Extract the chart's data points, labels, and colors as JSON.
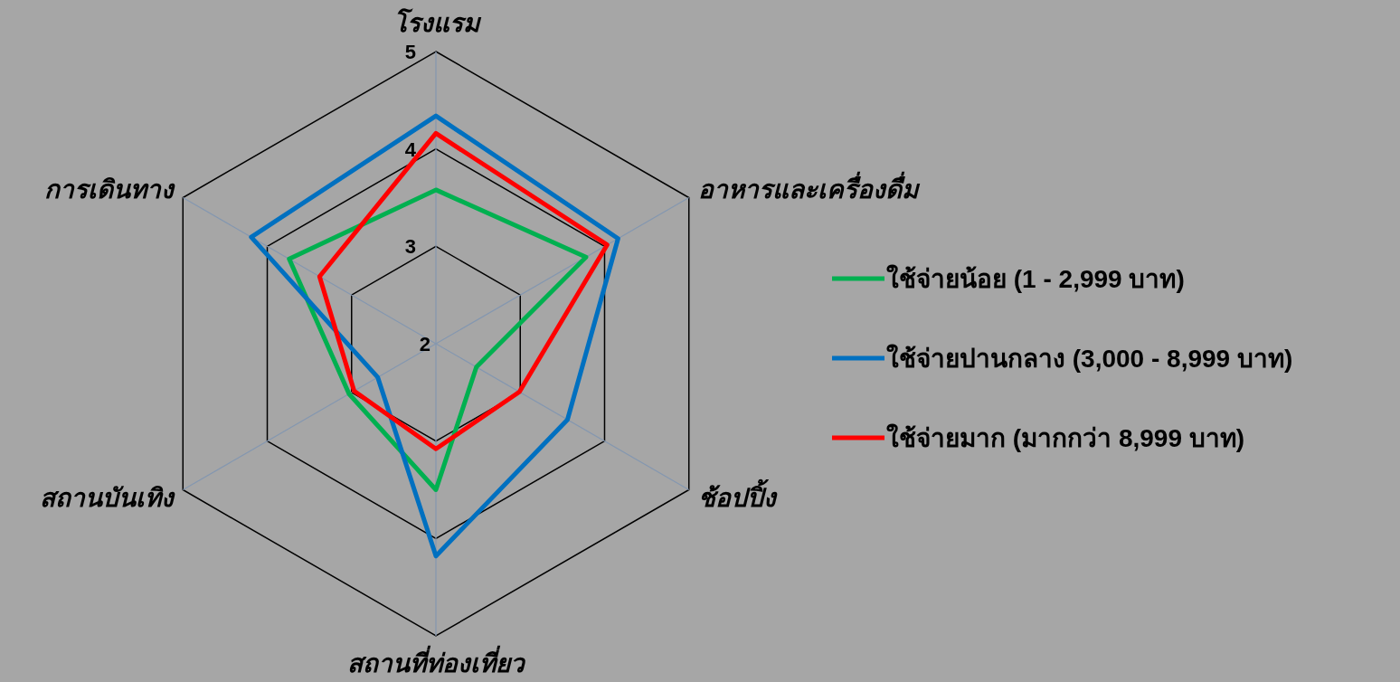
{
  "chart_data": {
    "type": "radar",
    "categories": [
      "โรงแรม",
      "อาหารและเครื่องดื่ม",
      "ช้อปปิ้ง",
      "สถานที่ท่องเที่ยว",
      "สถานบันเทิง",
      "การเดินทาง"
    ],
    "ylim": [
      2,
      5
    ],
    "yticks": [
      2,
      3,
      4,
      5
    ],
    "legend": "right",
    "grid": true,
    "series": [
      {
        "name": "ใช้จ่ายน้อย (1 - 2,999 บาท)",
        "color": "#00b050",
        "values": [
          3.58,
          3.78,
          2.48,
          3.5,
          3.03,
          3.74
        ]
      },
      {
        "name": "ใช้จ่ายปานกลาง (3,000 - 8,999 บาท)",
        "color": "#0070c0",
        "values": [
          4.34,
          4.16,
          3.56,
          4.18,
          2.69,
          4.19
        ]
      },
      {
        "name": "ใช้จ่ายมาก (มากกว่า 8,999 บาท)",
        "color": "#ff0000",
        "values": [
          4.16,
          4.03,
          2.99,
          3.08,
          2.97,
          3.38
        ]
      }
    ]
  }
}
